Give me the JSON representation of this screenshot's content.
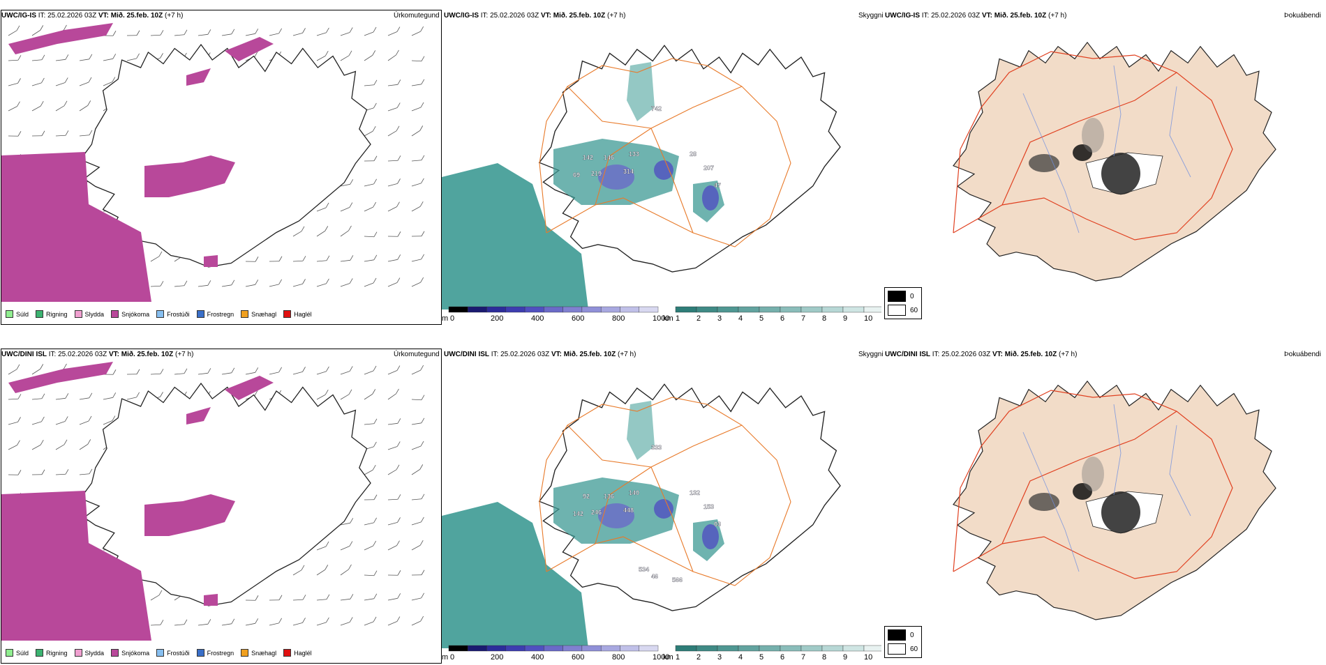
{
  "rows": [
    {
      "model": "UWC/IG-IS",
      "it": "IT: 25.02.2026 03Z",
      "vt_label": "VT:",
      "vt": "Mið. 25.feb. 10Z",
      "lead": "(+7 h)",
      "labels": {
        "a": [
          "142",
          "146",
          "133",
          "219",
          "69",
          "314",
          "742",
          "28",
          "207",
          "47"
        ],
        "b": [
          "0",
          "60"
        ]
      }
    },
    {
      "model": "UWC/DINI ISL",
      "it": "IT: 25.02.2026 03Z",
      "vt_label": "VT:",
      "vt": "Mið. 25.feb. 10Z",
      "lead": "(+7 h)",
      "labels": {
        "a": [
          "92",
          "136",
          "140",
          "246",
          "142",
          "448",
          "333",
          "132",
          "153",
          "03",
          "534",
          "46",
          "566"
        ],
        "b": [
          "0",
          "60"
        ]
      }
    }
  ],
  "panel_titles": {
    "precip": "Úrkomutegund",
    "ceiling": "Skyggni",
    "fog": "Þokuábendi"
  },
  "precip_legend": [
    {
      "label": "Súld",
      "color": "#90ee90"
    },
    {
      "label": "Rigning",
      "color": "#3cb371"
    },
    {
      "label": "Slydda",
      "color": "#f0a0d0"
    },
    {
      "label": "Snjókoma",
      "color": "#b8489a"
    },
    {
      "label": "Frostúði",
      "color": "#87bff0"
    },
    {
      "label": "Frostregn",
      "color": "#3a6fc8"
    },
    {
      "label": "Snæhagl",
      "color": "#f0a020"
    },
    {
      "label": "Haglél",
      "color": "#e01010"
    }
  ],
  "ceiling_bar": {
    "unit": "m",
    "ticks": [
      "0",
      "200",
      "400",
      "600",
      "800",
      "1000"
    ],
    "colors": [
      "#000000",
      "#1a1a70",
      "#2c2c9a",
      "#3d3db0",
      "#5050c0",
      "#6a6ac8",
      "#8080d0",
      "#9090d8",
      "#a8a8e0",
      "#c0c0e8",
      "#d8d8f0"
    ]
  },
  "vis_bar": {
    "unit": "km",
    "ticks": [
      "1",
      "2",
      "3",
      "4",
      "5",
      "6",
      "7",
      "8",
      "9",
      "10"
    ],
    "colors": [
      "#2e7d78",
      "#3f8a85",
      "#4f9792",
      "#62a39f",
      "#75b0ac",
      "#8abdba",
      "#a0cac7",
      "#b7d7d5",
      "#cfe5e3",
      "#e8f2f1"
    ]
  },
  "fog_legend": [
    "0",
    "60"
  ],
  "colors": {
    "snow": "#b8489a",
    "teal": "#3d9a94",
    "land_fog": "#f2dcc8",
    "roads": "#e87a2a",
    "rivers": "#7090e0"
  }
}
